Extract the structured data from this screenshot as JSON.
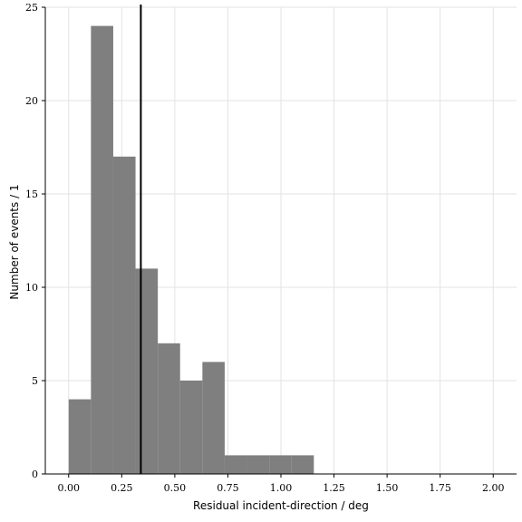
{
  "chart_data": {
    "type": "bar",
    "xlabel": "Residual incident-direction / deg",
    "ylabel": "Number of events / 1",
    "xlim": [
      -0.11,
      2.11
    ],
    "ylim": [
      0,
      25
    ],
    "xticks": [
      0.0,
      0.25,
      0.5,
      0.75,
      1.0,
      1.25,
      1.5,
      1.75,
      2.0
    ],
    "xtick_labels": [
      "0.00",
      "0.25",
      "0.50",
      "0.75",
      "1.00",
      "1.25",
      "1.50",
      "1.75",
      "2.00"
    ],
    "yticks": [
      0,
      5,
      10,
      15,
      20,
      25
    ],
    "ytick_labels": [
      "0",
      "5",
      "10",
      "15",
      "20",
      "25"
    ],
    "grid": true,
    "bin_edges": [
      0.0,
      0.105,
      0.21,
      0.315,
      0.42,
      0.525,
      0.63,
      0.735,
      0.84,
      0.945,
      1.05,
      1.155
    ],
    "counts": [
      4,
      24,
      17,
      11,
      7,
      5,
      6,
      1,
      1,
      1,
      1
    ],
    "vline_x": 0.34,
    "bar_color": "#7f7f7f"
  }
}
